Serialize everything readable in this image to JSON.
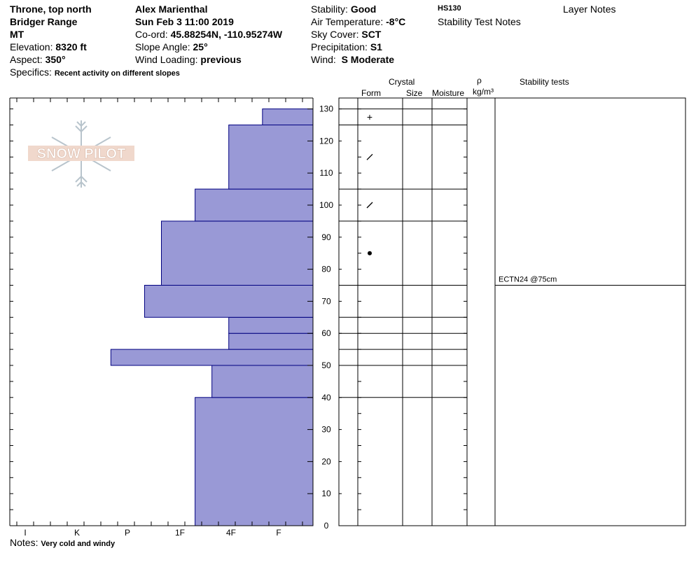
{
  "header": {
    "location": "Throne, top north",
    "range": "Bridger Range",
    "state": "MT",
    "elevation_label": "Elevation:",
    "elevation": "8320 ft",
    "aspect_label": "Aspect:",
    "aspect": "350°",
    "observer": "Alex Marienthal",
    "datetime": "Sun Feb 3 11:00 2019",
    "coord_label": "Co-ord:",
    "coord": "45.88254N, -110.95274W",
    "slope_label": "Slope Angle:",
    "slope": "25°",
    "wind_loading_label": "Wind Loading:",
    "wind_loading": "previous",
    "stability_label": "Stability:",
    "stability": "Good",
    "air_temp_label": "Air Temperature:",
    "air_temp": "-8°C",
    "sky_label": "Sky Cover:",
    "sky": "SCT",
    "precip_label": "Precipitation:",
    "precip": "S1",
    "wind_label": "Wind:",
    "wind": "S Moderate",
    "hs": "HS130",
    "stability_test_notes": "Stability Test Notes",
    "layer_notes": "Layer Notes",
    "specifics_label": "Specifics:",
    "specifics": "Recent activity on different slopes",
    "notes_label": "Notes:",
    "notes": "Very cold and windy"
  },
  "logo_text": "SNOW PILOT",
  "columns": {
    "crystal": "Crystal",
    "form": "Form",
    "size": "Size",
    "moisture": "Moisture",
    "rho": "ρ",
    "density_unit": "kg/m³",
    "stability_tests": "Stability tests"
  },
  "colors": {
    "hardness_fill": "#9999d6",
    "hardness_stroke": "#000080"
  },
  "chart_data": {
    "type": "bar",
    "orientation": "horizontal",
    "x_categories": [
      "I",
      "K",
      "P",
      "1F",
      "4F",
      "F"
    ],
    "y_axis": {
      "label": "",
      "range": [
        0,
        130
      ],
      "ticks": [
        0,
        10,
        20,
        30,
        40,
        50,
        60,
        70,
        80,
        90,
        100,
        110,
        120,
        130
      ]
    },
    "hardness_x_scale": {
      "F": 0.2,
      "4F": 0.4,
      "1F": 0.7,
      "P": 1.1,
      "K": 1.4,
      "I": 1.7
    },
    "layers": [
      {
        "bottom": 0,
        "top": 40,
        "hardness": 0.7
      },
      {
        "bottom": 40,
        "top": 50,
        "hardness": 0.6
      },
      {
        "bottom": 50,
        "top": 55,
        "hardness": 1.2
      },
      {
        "bottom": 55,
        "top": 60,
        "hardness": 0.5
      },
      {
        "bottom": 60,
        "top": 65,
        "hardness": 0.5
      },
      {
        "bottom": 65,
        "top": 75,
        "hardness": 1.0
      },
      {
        "bottom": 75,
        "top": 95,
        "hardness": 0.9
      },
      {
        "bottom": 95,
        "top": 105,
        "hardness": 0.7
      },
      {
        "bottom": 105,
        "top": 125,
        "hardness": 0.5
      },
      {
        "bottom": 125,
        "top": 130,
        "hardness": 0.3
      }
    ],
    "grain_forms": [
      {
        "height": 127.5,
        "symbol": "+"
      },
      {
        "height": 115,
        "symbol": "/"
      },
      {
        "height": 100,
        "symbol": "/"
      },
      {
        "height": 85,
        "symbol": "•"
      }
    ],
    "stability_results": [
      {
        "height": 75,
        "text": "ECTN24 @75cm"
      }
    ]
  }
}
